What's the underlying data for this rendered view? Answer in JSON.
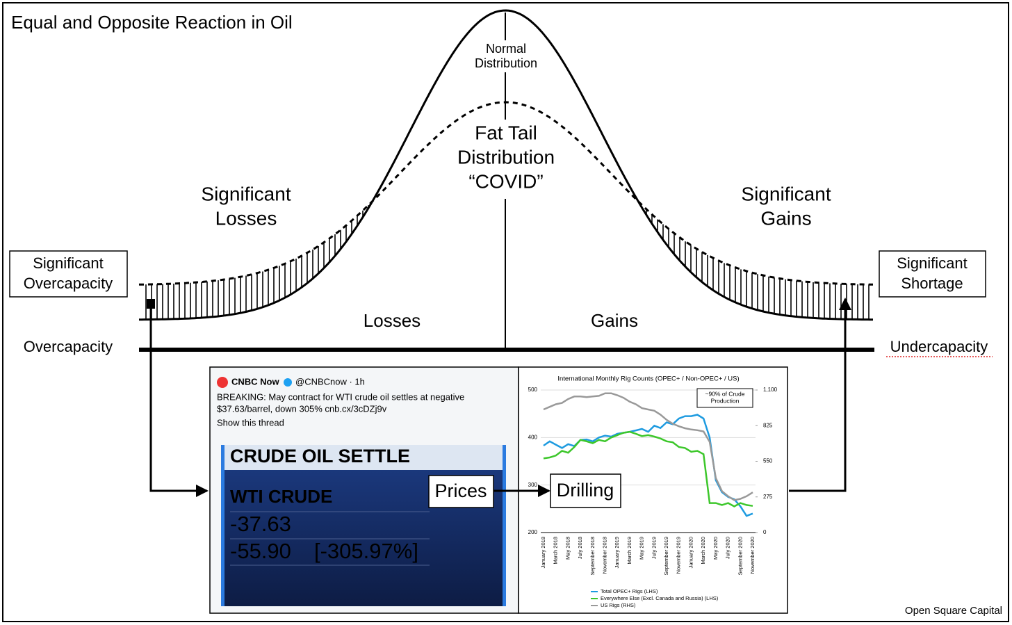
{
  "title": "Equal and Opposite Reaction in Oil",
  "curve_labels": {
    "normal": [
      "Normal",
      "Distribution"
    ],
    "fat_tail": [
      "Fat Tail",
      "Distribution",
      "“COVID”"
    ]
  },
  "regions": {
    "left": [
      "Significant",
      "Losses"
    ],
    "right": [
      "Significant",
      "Gains"
    ],
    "losses": "Losses",
    "gains": "Gains"
  },
  "boxes": {
    "left": [
      "Significant",
      "Overcapacity"
    ],
    "right": [
      "Significant",
      "Shortage"
    ]
  },
  "axis": {
    "left": "Overcapacity",
    "right": "Undercapacity"
  },
  "flow": {
    "prices": "Prices",
    "drilling": "Drilling"
  },
  "tweet": {
    "author": "CNBC Now",
    "handle": "@CNBCnow · 1h",
    "text": [
      "BREAKING: May contract for WTI crude oil settles at negative",
      "$37.63/barrel, down 305% cnb.cx/3cDZj9v"
    ],
    "link": "Show this thread"
  },
  "screen": {
    "header": "CRUDE OIL SETTLE",
    "name": "WTI CRUDE",
    "price": "-37.63",
    "change": "-55.90",
    "pct": "[-305.97%]"
  },
  "rig_chart": {
    "type": "line",
    "title": "International Monthly Rig Counts (OPEC+ / Non-OPEC+ / US)",
    "note": [
      "~90% of Crude",
      "Production"
    ],
    "categories": [
      "January 2018",
      null,
      "March 2018",
      null,
      "May 2018",
      null,
      "July 2018",
      null,
      "September 2018",
      null,
      "November 2018",
      null,
      "January 2019",
      null,
      "March 2019",
      null,
      "May 2019",
      null,
      "July 2019",
      null,
      "September 2019",
      null,
      "November 2019",
      null,
      "January 2020",
      null,
      "March 2020",
      null,
      "May 2020",
      null,
      "July 2020",
      null,
      "September 2020",
      null,
      "November 2020"
    ],
    "ylim": [
      200,
      500
    ],
    "yticks": [
      200,
      300,
      400,
      500
    ],
    "y2lim": [
      0,
      1100
    ],
    "y2ticks": [
      0,
      275,
      550,
      825,
      {
        "value": 1100,
        "label": "1,100"
      }
    ],
    "grid": true,
    "series": [
      {
        "name": "Total OPEC+ Rigs (LHS)",
        "color": "#1e9be0",
        "values": [
          383,
          392,
          385,
          378,
          386,
          382,
          395,
          396,
          392,
          400,
          404,
          402,
          408,
          410,
          412,
          415,
          418,
          412,
          425,
          420,
          432,
          428,
          440,
          445,
          445,
          448,
          440,
          400,
          310,
          285,
          275,
          270,
          255,
          235,
          240
        ]
      },
      {
        "name": "Everywhere Else (Excl. Canada and Russia) (LHS)",
        "color": "#3dc72b",
        "values": [
          356,
          358,
          362,
          372,
          368,
          380,
          395,
          392,
          388,
          395,
          392,
          400,
          405,
          410,
          412,
          408,
          403,
          405,
          402,
          398,
          392,
          390,
          380,
          378,
          370,
          372,
          365,
          262,
          262,
          258,
          262,
          255,
          262,
          258,
          256
        ]
      },
      {
        "name": "US Rigs (RHS)",
        "color": "#999999",
        "axis": "y2",
        "values": [
          950,
          970,
          990,
          1000,
          1030,
          1050,
          1050,
          1045,
          1050,
          1055,
          1075,
          1075,
          1060,
          1040,
          1010,
          990,
          960,
          950,
          940,
          910,
          870,
          840,
          820,
          805,
          795,
          790,
          780,
          700,
          420,
          320,
          280,
          250,
          260,
          280,
          310
        ]
      }
    ]
  },
  "credit": "Open Square Capital"
}
